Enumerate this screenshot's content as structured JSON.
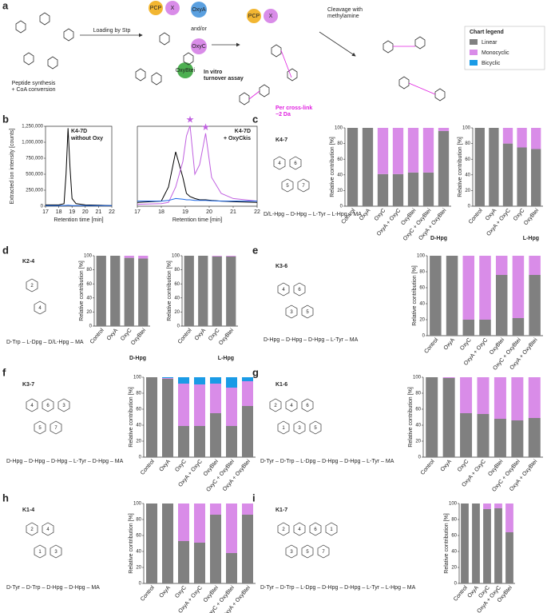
{
  "panel_labels": [
    "a",
    "b",
    "c",
    "d",
    "e",
    "f",
    "g",
    "h",
    "i"
  ],
  "scheme": {
    "texts": [
      "Loading by Stp",
      "Peptide synthesis",
      "+ CoA conversion",
      "PCP",
      "X",
      "OxyA",
      "and/or",
      "OxyC",
      "OxyBtei",
      "In vitro",
      "turnover assay",
      "PCP",
      "X",
      "Per cross-link",
      "−2 Da",
      "Cleavage with",
      "methylamine"
    ]
  },
  "legend": {
    "title": "Chart legend",
    "items": [
      {
        "name": "Linear",
        "color": "#808080"
      },
      {
        "name": "Monocyclic",
        "color": "#d98ce8"
      },
      {
        "name": "Bicyclic",
        "color": "#1a9be6"
      }
    ]
  },
  "compounds": [
    {
      "name": "K4-7",
      "sequence": "D/L-Hpg – D-Hpg – L-Tyr – L-Hpg – MA",
      "rings": [
        "4",
        "6",
        "5",
        "7"
      ]
    },
    {
      "name": "K2-4",
      "sequence": "D-Trp – L-Dpg – D/L-Hpg – MA",
      "rings": [
        "2",
        "4"
      ]
    },
    {
      "name": "K3-6",
      "sequence": "D-Hpg – D-Hpg – D-Hpg – L-Tyr – MA",
      "rings": [
        "4",
        "6",
        "3",
        "5"
      ]
    },
    {
      "name": "K3-7",
      "sequence": "D-Hpg – D-Hpg – D-Hpg – L-Tyr – D-Hpg – MA",
      "rings": [
        "4",
        "6",
        "3",
        "5",
        "7"
      ]
    },
    {
      "name": "K1-6",
      "sequence": "D-Tyr – D-Trp – L-Dpg – D-Hpg – D-Hpg – L-Tyr – MA",
      "rings": [
        "2",
        "4",
        "6",
        "1",
        "3",
        "5"
      ]
    },
    {
      "name": "K1-4",
      "sequence": "D-Tyr – D-Trp – D-Hpg – D-Hpg – MA",
      "rings": [
        "2",
        "4",
        "1",
        "3"
      ]
    },
    {
      "name": "K1-7",
      "sequence": "D-Tyr – D-Trp – L-Dpg – D-Hpg – D-Hpg – L-Tyr – L-Hpg – MA",
      "rings": [
        "2",
        "4",
        "6",
        "1",
        "3",
        "5",
        "7"
      ]
    }
  ],
  "chart_data": [
    {
      "type": "line",
      "annotation": [
        "K4-7D",
        "without Oxy"
      ],
      "xlabel": "Retention time [min]",
      "ylabel": "Extracted ion intensity [counts]",
      "x": [
        17,
        18,
        18.4,
        18.55,
        18.7,
        18.85,
        19,
        19.3,
        20,
        21,
        22
      ],
      "series": [
        {
          "color": "#000000",
          "values": [
            20000,
            20000,
            40000,
            500000,
            1220000,
            600000,
            120000,
            40000,
            20000,
            15000,
            10000
          ]
        },
        {
          "color": "#1a66e6",
          "values": [
            10000,
            10000,
            10000,
            12000,
            15000,
            12000,
            10000,
            10000,
            10000,
            10000,
            10000
          ]
        }
      ],
      "xlim": [
        17,
        22
      ],
      "ylim": [
        0,
        1250000
      ],
      "xticks": [
        17,
        18,
        19,
        20,
        21,
        22
      ],
      "yticks": [
        0,
        {
          "value": 250000,
          "label": "250,000"
        },
        {
          "value": 500000,
          "label": "500,000"
        },
        {
          "value": 750000,
          "label": "750,000"
        },
        {
          "value": 1000000,
          "label": "1,000,000"
        },
        {
          "value": 1250000,
          "label": "1,250,000"
        }
      ]
    },
    {
      "type": "line",
      "annotation": [
        "K4-7D",
        "+ OxyCkis"
      ],
      "xlabel": "Retention time [min]",
      "x": [
        17,
        18,
        18.3,
        18.6,
        18.9,
        19.05,
        19.2,
        19.4,
        19.6,
        19.85,
        20.1,
        20.5,
        21,
        22
      ],
      "series": [
        {
          "color": "#000000",
          "values": [
            60000,
            80000,
            300000,
            850000,
            450000,
            200000,
            150000,
            120000,
            100000,
            100000,
            90000,
            80000,
            70000,
            60000
          ]
        },
        {
          "color": "#c060e0",
          "values": [
            30000,
            40000,
            60000,
            300000,
            700000,
            1100000,
            1260000,
            500000,
            650000,
            1140000,
            450000,
            200000,
            120000,
            80000
          ]
        },
        {
          "color": "#1a66e6",
          "values": [
            80000,
            80000,
            90000,
            120000,
            110000,
            100000,
            100000,
            90000,
            90000,
            90000,
            85000,
            80000,
            80000,
            80000
          ]
        }
      ],
      "xlim": [
        17,
        22
      ],
      "ylim": [
        0,
        1250000
      ],
      "xticks": [
        17,
        18,
        19,
        20,
        21,
        22
      ]
    },
    {
      "type": "stacked_bar",
      "xlabel": "D-Hpg",
      "ylabel": "Relative contribution [%]",
      "categories": [
        "Control",
        "OxyA",
        "OxyC",
        "OxyA + OxyC",
        "OxyBtei",
        "OxyC + OxyBtei",
        "OxyA + OxyBtei"
      ],
      "series": [
        {
          "values": [
            100,
            100,
            41,
            41,
            43,
            43,
            96
          ]
        },
        {
          "values": [
            0,
            0,
            59,
            59,
            57,
            57,
            4
          ]
        }
      ],
      "ylim": [
        0,
        100
      ],
      "yticks": [
        0,
        20,
        40,
        60,
        80,
        100
      ]
    },
    {
      "type": "stacked_bar",
      "xlabel": "L-Hpg",
      "ylabel": "Relative contribution [%]",
      "categories": [
        "Control",
        "OxyA",
        "OxyA + OxyC",
        "OxyC",
        "OxyBtei"
      ],
      "series": [
        {
          "values": [
            100,
            100,
            80,
            75,
            73
          ]
        },
        {
          "values": [
            0,
            0,
            20,
            25,
            27
          ]
        }
      ],
      "ylim": [
        0,
        100
      ],
      "yticks": [
        0,
        20,
        40,
        60,
        80,
        100
      ]
    },
    {
      "type": "stacked_bar",
      "xlabel": "D-Hpg",
      "ylabel": "Relative contribution [%]",
      "categories": [
        "Control",
        "OxyA",
        "OxyC",
        "OxyBtei"
      ],
      "series": [
        {
          "values": [
            100,
            100,
            97,
            96
          ]
        },
        {
          "values": [
            0,
            0,
            3,
            4
          ]
        }
      ],
      "ylim": [
        0,
        100
      ],
      "yticks": [
        0,
        20,
        40,
        60,
        80,
        100
      ]
    },
    {
      "type": "stacked_bar",
      "xlabel": "L-Hpg",
      "ylabel": "Relative contribution [%]",
      "categories": [
        "Control",
        "OxyA",
        "OxyC",
        "OxyBtei"
      ],
      "series": [
        {
          "values": [
            100,
            100,
            99,
            99
          ]
        },
        {
          "values": [
            0,
            0,
            1,
            1
          ]
        }
      ],
      "ylim": [
        0,
        100
      ],
      "yticks": [
        0,
        20,
        40,
        60,
        80,
        100
      ]
    },
    {
      "type": "stacked_bar",
      "ylabel": "Relative contribution [%]",
      "categories": [
        "Control",
        "OxyA",
        "OxyC",
        "OxyA + OxyC",
        "OxyBtei",
        "OxyC + OxyBtei",
        "OxyA + OxyBtei"
      ],
      "series": [
        {
          "values": [
            100,
            100,
            20,
            20,
            76,
            22,
            76
          ]
        },
        {
          "values": [
            0,
            0,
            80,
            80,
            24,
            78,
            24
          ]
        }
      ],
      "ylim": [
        0,
        100
      ],
      "yticks": [
        0,
        20,
        40,
        60,
        80,
        100
      ]
    },
    {
      "type": "stacked_bar",
      "ylabel": "Relative contribution [%]",
      "categories": [
        "Control",
        "OxyA",
        "OxyC",
        "OxyA + OxyC",
        "OxyBtei",
        "OxyC + OxyBtei",
        "OxyA + OxyBtei"
      ],
      "series": [
        {
          "values": [
            100,
            98,
            39,
            39,
            55,
            39,
            64
          ]
        },
        {
          "values": [
            0,
            1,
            53,
            52,
            37,
            48,
            31
          ]
        },
        {
          "values": [
            0,
            1,
            8,
            9,
            8,
            13,
            5
          ]
        }
      ],
      "ylim": [
        0,
        100
      ],
      "yticks": [
        0,
        20,
        40,
        60,
        80,
        100
      ]
    },
    {
      "type": "stacked_bar",
      "ylabel": "Relative contribution [%]",
      "categories": [
        "Control",
        "OxyA",
        "OxyC",
        "OxyA + OxyC",
        "OxyBtei",
        "OxyC + OxyBtei",
        "OxyA + OxyBtei"
      ],
      "series": [
        {
          "values": [
            100,
            99,
            55,
            54,
            48,
            46,
            49
          ]
        },
        {
          "values": [
            0,
            1,
            45,
            46,
            52,
            54,
            51
          ]
        }
      ],
      "ylim": [
        0,
        100
      ],
      "yticks": [
        0,
        20,
        40,
        60,
        80,
        100
      ]
    },
    {
      "type": "stacked_bar",
      "ylabel": "Relative contribution [%]",
      "categories": [
        "Control",
        "OxyA",
        "OxyC",
        "OxyA + OxyC",
        "OxyBtei",
        "OxyC + OxyBtei",
        "OxyA + OxyBtei"
      ],
      "series": [
        {
          "values": [
            100,
            100,
            53,
            51,
            86,
            38,
            86
          ]
        },
        {
          "values": [
            0,
            0,
            47,
            49,
            14,
            62,
            14
          ]
        }
      ],
      "ylim": [
        0,
        100
      ],
      "yticks": [
        0,
        20,
        40,
        60,
        80,
        100
      ]
    },
    {
      "type": "stacked_bar",
      "ylabel": "Relative contribution [%]",
      "categories": [
        "Control",
        "OxyA",
        "OxyC",
        "OxyA + OxyC",
        "OxyBtei"
      ],
      "series": [
        {
          "values": [
            100,
            100,
            93,
            94,
            64
          ]
        },
        {
          "values": [
            0,
            0,
            7,
            6,
            36
          ]
        }
      ],
      "ylim": [
        0,
        100
      ],
      "yticks": [
        0,
        20,
        40,
        60,
        80,
        100
      ]
    }
  ]
}
